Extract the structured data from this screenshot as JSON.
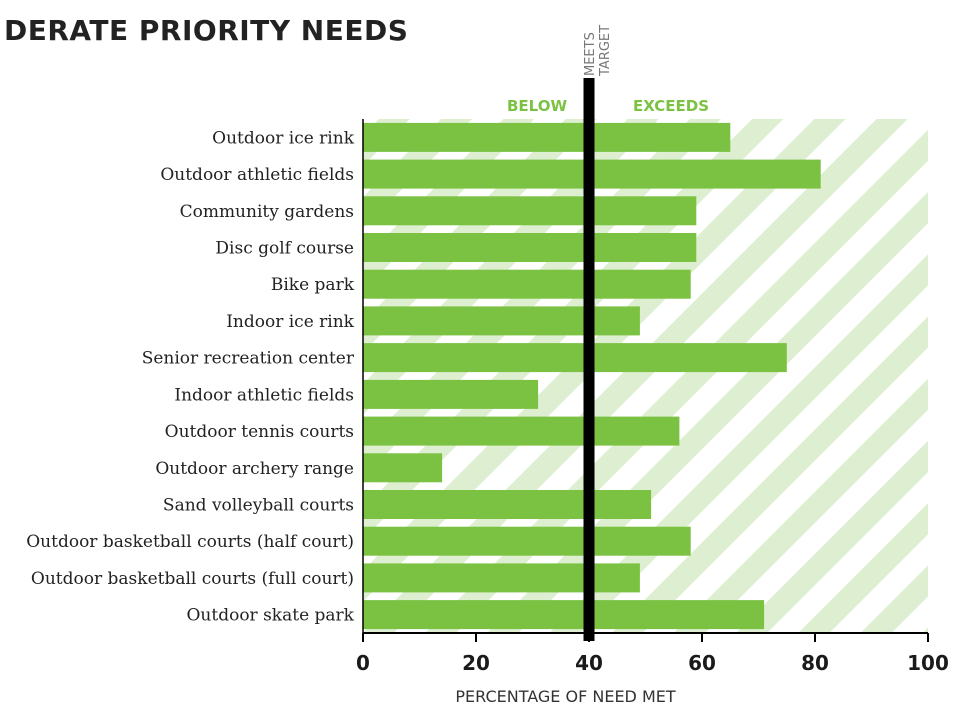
{
  "title": "DERATE PRIORITY NEEDS",
  "colors": {
    "bar": "#7cc242",
    "hatch": "#ddefd0",
    "target_line": "#000000",
    "axis": "#000000",
    "accent_text": "#7cc242"
  },
  "chart_data": {
    "type": "bar",
    "orientation": "horizontal",
    "title": "DERATE PRIORITY NEEDS",
    "xlabel": "PERCENTAGE OF NEED MET",
    "ylabel": "",
    "xlim": [
      0,
      100
    ],
    "xticks": [
      0,
      20,
      40,
      60,
      80,
      100
    ],
    "target": {
      "value": 40,
      "label_line1": "MEETS",
      "label_line2": "TARGET"
    },
    "region_labels": {
      "below": "BELOW",
      "exceeds": "EXCEEDS"
    },
    "background": "hatched",
    "categories": [
      "Outdoor ice rink",
      "Outdoor athletic fields",
      "Community gardens",
      "Disc golf course",
      "Bike park",
      "Indoor ice rink",
      "Senior recreation center",
      "Indoor athletic fields",
      "Outdoor tennis courts",
      "Outdoor archery range",
      "Sand volleyball courts",
      "Outdoor basketball courts (half court)",
      "Outdoor basketball courts (full court)",
      "Outdoor skate park"
    ],
    "values": [
      65,
      81,
      59,
      59,
      58,
      49,
      75,
      31,
      56,
      14,
      51,
      58,
      49,
      71
    ]
  }
}
